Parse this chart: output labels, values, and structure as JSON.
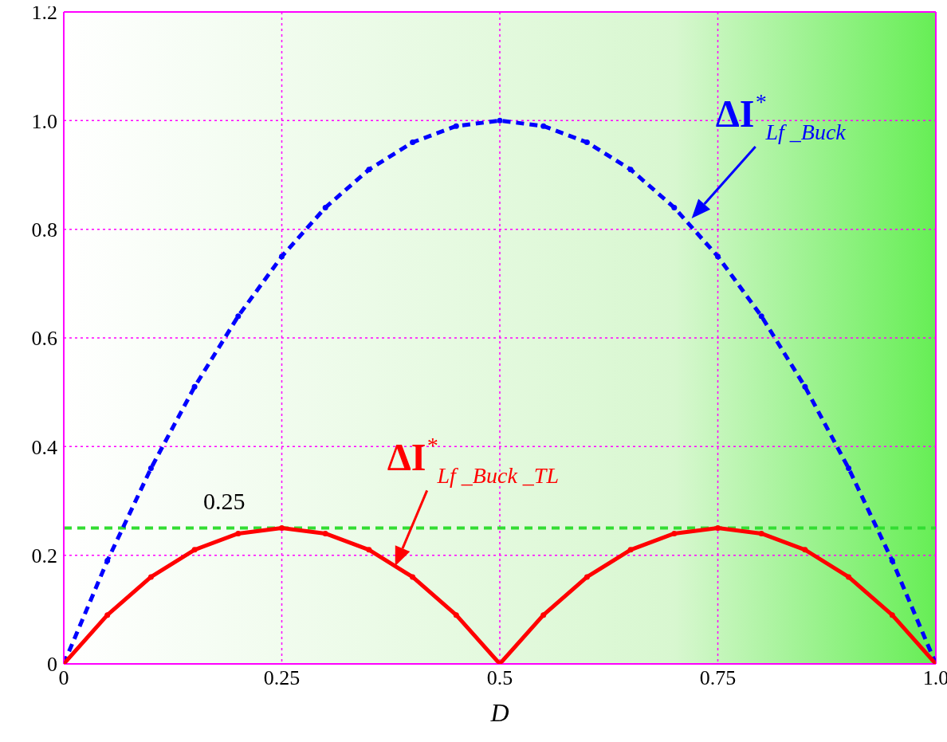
{
  "chart_data": {
    "type": "line",
    "xlabel": "D",
    "xlim": [
      0,
      1
    ],
    "xticks": [
      0,
      0.25,
      0.5,
      0.75,
      {
        "value": 1,
        "label": "1.0"
      }
    ],
    "ylim": [
      0,
      1.2
    ],
    "yticks": [
      0,
      0.2,
      0.4,
      0.6,
      0.8,
      {
        "value": 1,
        "label": "1.0"
      },
      1.2
    ],
    "grid": true,
    "marker": "circle",
    "series": [
      {
        "color": "#0000ff",
        "line_style": "dashed",
        "x": [
          0,
          0.05,
          0.1,
          0.15,
          0.2,
          0.25,
          0.3,
          0.35,
          0.4,
          0.45,
          0.5,
          0.55,
          0.6,
          0.65,
          0.7,
          0.75,
          0.8,
          0.85,
          0.9,
          0.95,
          1
        ],
        "values": [
          0,
          0.19,
          0.36,
          0.51,
          0.64,
          0.75,
          0.84,
          0.91,
          0.96,
          0.99,
          1.0,
          0.99,
          0.96,
          0.91,
          0.84,
          0.75,
          0.64,
          0.51,
          0.36,
          0.19,
          0
        ]
      },
      {
        "color": "#ff0000",
        "line_style": "solid",
        "x": [
          0,
          0.05,
          0.1,
          0.15,
          0.2,
          0.25,
          0.3,
          0.35,
          0.4,
          0.45,
          0.5,
          0.55,
          0.6,
          0.65,
          0.7,
          0.75,
          0.8,
          0.85,
          0.9,
          0.95,
          1
        ],
        "values": [
          0,
          0.09,
          0.16,
          0.21,
          0.24,
          0.25,
          0.24,
          0.21,
          0.16,
          0.09,
          0,
          0.09,
          0.16,
          0.21,
          0.24,
          0.25,
          0.24,
          0.21,
          0.16,
          0.09,
          0
        ]
      }
    ],
    "ref_lines": [
      {
        "axis": "y",
        "value": 0.25,
        "label": "0.25",
        "color": "#33dd33",
        "line_style": "dashed"
      }
    ],
    "annotations": [
      {
        "text": "ΔI$^{*}$$_{Lf _Buck}$",
        "x": 0.72,
        "y": 0.82
      },
      {
        "text": "ΔI$^{*}$$_{Lf _Buck _TL}$",
        "x": 0.38,
        "y": 0.18
      }
    ]
  }
}
